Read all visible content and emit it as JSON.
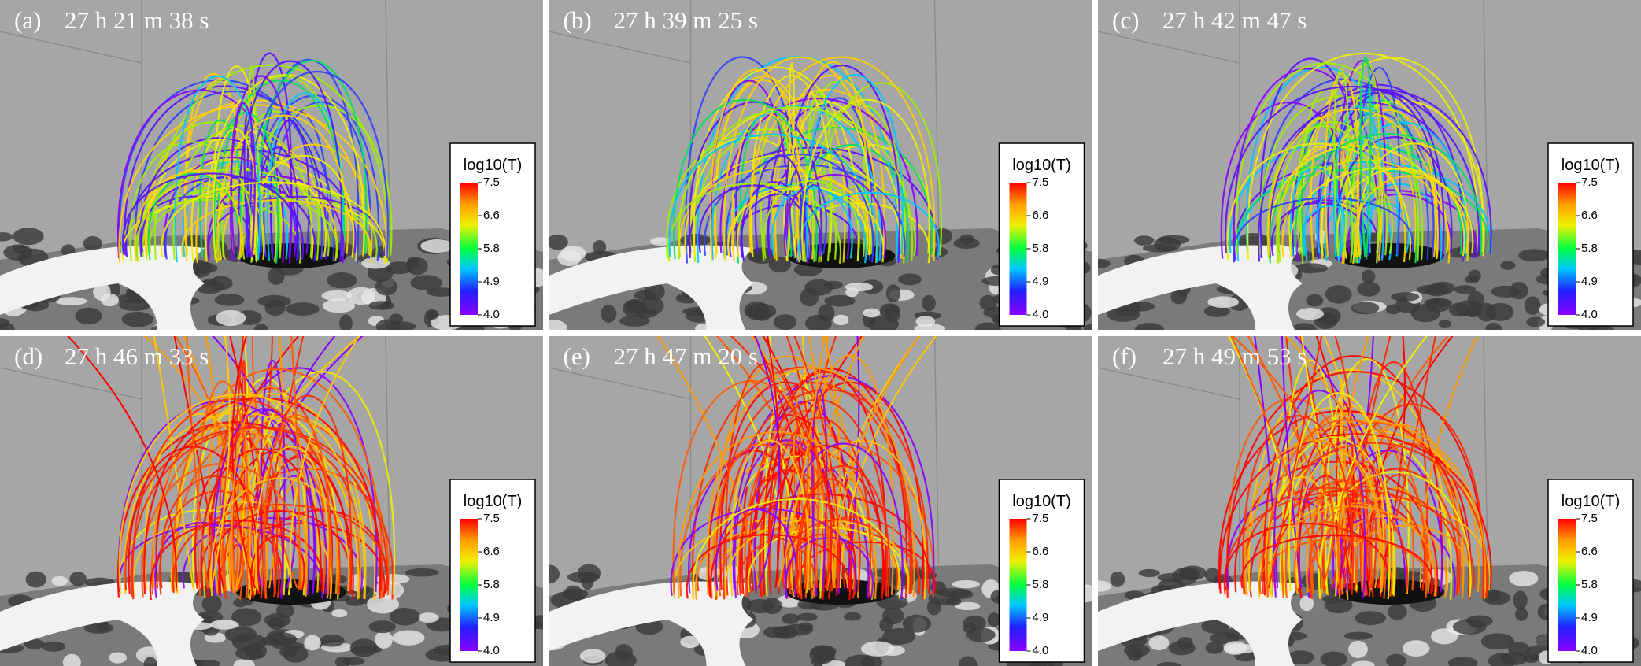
{
  "panels": [
    {
      "label": "(a)",
      "time": "27 h 21 m 38 s"
    },
    {
      "label": "(b)",
      "time": "27 h 39 m 25 s"
    },
    {
      "label": "(c)",
      "time": "27 h 42 m 47 s"
    },
    {
      "label": "(d)",
      "time": "27 h 46 m 33 s"
    },
    {
      "label": "(e)",
      "time": "27 h 47 m 20 s"
    },
    {
      "label": "(f)",
      "time": "27 h 49 m 53 s"
    }
  ],
  "colorbar": {
    "title": "log10(T)",
    "ticks": [
      "7.5",
      "6.6",
      "5.8",
      "4.9",
      "4.0"
    ]
  }
}
